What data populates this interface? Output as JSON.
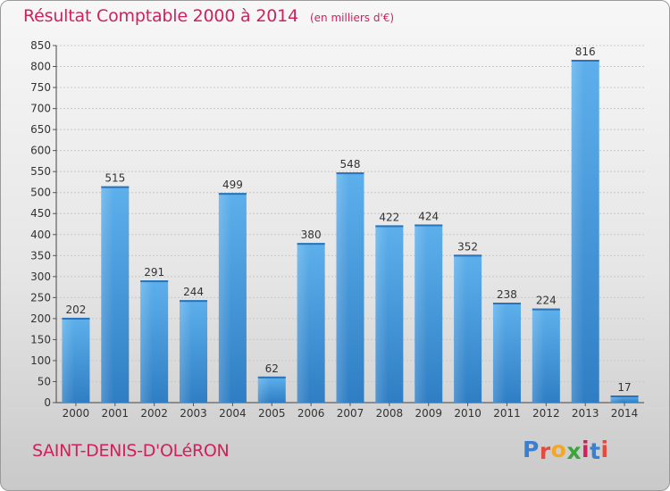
{
  "header": {
    "title": "Résultat Comptable 2000 à 2014",
    "subtitle": "(en milliers d'€)"
  },
  "footer": {
    "city": "SAINT-DENIS-D'OLéRON",
    "logo_letters": [
      "P",
      "r",
      "o",
      "x",
      "i",
      "t",
      "i"
    ],
    "logo_colors": [
      "#3a7fd0",
      "#e8493b",
      "#f5a623",
      "#3aa63a",
      "#d2205a",
      "#3a7fd0",
      "#e8493b"
    ]
  },
  "chart_data": {
    "type": "bar",
    "title": "Résultat Comptable 2000 à 2014",
    "subtitle": "(en milliers d'€)",
    "categories": [
      "2000",
      "2001",
      "2002",
      "2003",
      "2004",
      "2005",
      "2006",
      "2007",
      "2008",
      "2009",
      "2010",
      "2011",
      "2012",
      "2013",
      "2014"
    ],
    "values": [
      202,
      515,
      291,
      244,
      499,
      62,
      380,
      548,
      422,
      424,
      352,
      238,
      224,
      816,
      17
    ],
    "ylim": [
      0,
      850
    ],
    "yticks": [
      0,
      50,
      100,
      150,
      200,
      250,
      300,
      350,
      400,
      450,
      500,
      550,
      600,
      650,
      700,
      750,
      800,
      850
    ],
    "grid": true,
    "bar_color": "#4a9fe0"
  }
}
